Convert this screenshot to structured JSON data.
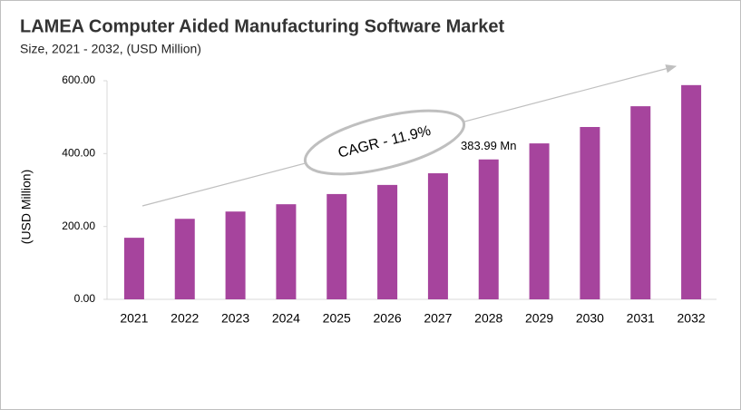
{
  "chart_data": {
    "type": "bar",
    "title": "LAMEA Computer Aided Manufacturing  Software Market",
    "subtitle": "Size, 2021 - 2032, (USD Million)",
    "y_label": "(USD Million)",
    "annotation": "CAGR - 11.9%",
    "categories": [
      "2021",
      "2022",
      "2023",
      "2024",
      "2025",
      "2026",
      "2027",
      "2028",
      "2029",
      "2030",
      "2031",
      "2032"
    ],
    "values": [
      169,
      221,
      241,
      261,
      289,
      314,
      346,
      383.99,
      428,
      473,
      530,
      588
    ],
    "value_labels": [
      null,
      null,
      null,
      null,
      null,
      null,
      null,
      "383.99 Mn",
      null,
      null,
      null,
      null
    ],
    "color": "#a6449d",
    "ylim": [
      0,
      600
    ],
    "yticks": [
      {
        "value": 0,
        "label": "0.00"
      },
      {
        "value": 200,
        "label": "200.00"
      },
      {
        "value": 400,
        "label": "400.00"
      },
      {
        "value": 600,
        "label": "600.00"
      }
    ],
    "grid": false
  }
}
